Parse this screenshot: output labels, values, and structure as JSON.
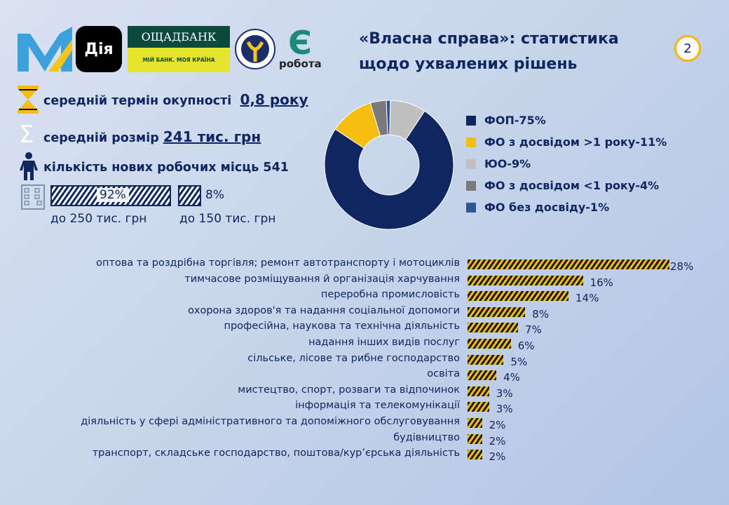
{
  "header": {
    "title_line1": "«Власна справа»: статистика",
    "title_line2": "щодо ухвалених рішень",
    "page_number": "2"
  },
  "logos": {
    "dia": "Дія",
    "oshchadbank": "ОЩАДБАНК",
    "oshchadbank_slogan": "МІЙ БАНК. МОЯ КРАЇНА",
    "robota": "робота",
    "robota_letter": "Є",
    "dsz": "ДЕРЖАВНА СЛУЖБА ЗАЙНЯТОСТІ"
  },
  "stats": {
    "payback_label": "середній термін окупності",
    "payback_value": "0,8 року",
    "size_label": "середній розмір",
    "size_value": "241 тис. грн",
    "jobs_label": "кількість нових робочих місць 541"
  },
  "grant_split": {
    "a_pct": "92%",
    "a_value": 92,
    "a_label": "до 250 тис. грн",
    "b_pct": "8%",
    "b_value": 8,
    "b_label": "до 150 тис. грн"
  },
  "chart_data": [
    {
      "type": "pie",
      "subtype": "donut",
      "title": "",
      "legend_placement": "right",
      "slices": [
        {
          "label": "ФОП-75%",
          "name": "ФОП",
          "value": 75,
          "color": "#0f2660"
        },
        {
          "label": "ФО з досвідом >1 року-11%",
          "name": "ФО з досвідом >1 року",
          "value": 11,
          "color": "#f5bd10"
        },
        {
          "label": "ЮО-9%",
          "name": "ЮО",
          "value": 9,
          "color": "#c0c0c0"
        },
        {
          "label": "ФО з досвідом <1 року-4%",
          "name": "ФО з досвідом <1 року",
          "value": 4,
          "color": "#7a7a7a"
        },
        {
          "label": "ФО без досвіду-1%",
          "name": "ФО без досвіду",
          "value": 1,
          "color": "#2f5597"
        }
      ]
    },
    {
      "type": "bar",
      "orientation": "horizontal",
      "title": "",
      "xlabel": "",
      "ylabel": "",
      "categories": [
        "оптова та роздрібна торгівля; ремонт автотранспорту і мотоциклів",
        "тимчасове розміщування й організація харчування",
        "переробна промисловість",
        "охорона здоров'я та надання соціальної допомоги",
        "професійна, наукова та технічна діяльність",
        "надання інших видів послуг",
        "сільське, лісове та рибне господарство",
        "освіта",
        "мистецтво, спорт, розваги та відпочинок",
        "інформація та телекомунікації",
        "діяльність у сфері адміністративного та допоміжного обслуговування",
        "будівництво",
        "транспорт, складське господарство, поштова/кур’єрська діяльність"
      ],
      "values": [
        28,
        16,
        14,
        8,
        7,
        6,
        5,
        4,
        3,
        3,
        2,
        2,
        2
      ],
      "labels": [
        "28%",
        "16%",
        "14%",
        "8%",
        "7%",
        "6%",
        "5%",
        "4%",
        "3%",
        "3%",
        "2%",
        "2%",
        "2%"
      ],
      "xlim": [
        0,
        28
      ]
    }
  ]
}
